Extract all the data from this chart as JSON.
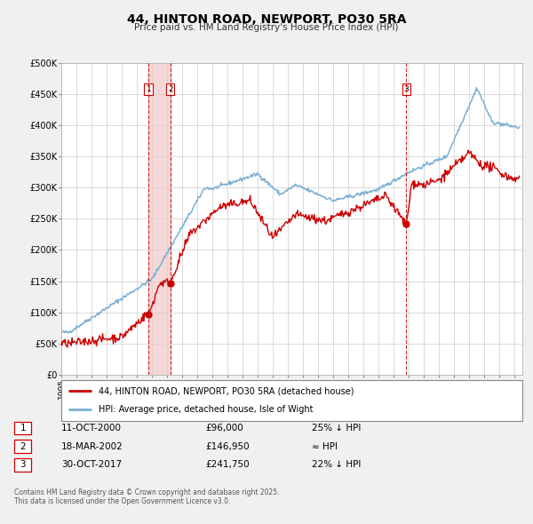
{
  "title": "44, HINTON ROAD, NEWPORT, PO30 5RA",
  "subtitle": "Price paid vs. HM Land Registry's House Price Index (HPI)",
  "ylim": [
    0,
    500000
  ],
  "xlim_start": 1995.0,
  "xlim_end": 2025.5,
  "yticks": [
    0,
    50000,
    100000,
    150000,
    200000,
    250000,
    300000,
    350000,
    400000,
    450000,
    500000
  ],
  "ytick_labels": [
    "£0",
    "£50K",
    "£100K",
    "£150K",
    "£200K",
    "£250K",
    "£300K",
    "£350K",
    "£400K",
    "£450K",
    "£500K"
  ],
  "xticks": [
    1995,
    1996,
    1997,
    1998,
    1999,
    2000,
    2001,
    2002,
    2003,
    2004,
    2005,
    2006,
    2007,
    2008,
    2009,
    2010,
    2011,
    2012,
    2013,
    2014,
    2015,
    2016,
    2017,
    2018,
    2019,
    2020,
    2021,
    2022,
    2023,
    2024,
    2025
  ],
  "sale_color": "#cc0000",
  "hpi_color": "#7ab0d4",
  "vline_color": "#cc0000",
  "vspan_color": "#f0c8c8",
  "marker_color": "#cc0000",
  "legend_entry1": "44, HINTON ROAD, NEWPORT, PO30 5RA (detached house)",
  "legend_entry2": "HPI: Average price, detached house, Isle of Wight",
  "transaction1_date": 2000.78,
  "transaction1_price": 96000,
  "transaction1_label": "1",
  "transaction1_text": "11-OCT-2000",
  "transaction1_amount": "£96,000",
  "transaction1_relation": "25% ↓ HPI",
  "transaction2_date": 2002.21,
  "transaction2_price": 146950,
  "transaction2_label": "2",
  "transaction2_text": "18-MAR-2002",
  "transaction2_amount": "£146,950",
  "transaction2_relation": "≈ HPI",
  "transaction3_date": 2017.83,
  "transaction3_price": 241750,
  "transaction3_label": "3",
  "transaction3_text": "30-OCT-2017",
  "transaction3_amount": "£241,750",
  "transaction3_relation": "22% ↓ HPI",
  "footer1": "Contains HM Land Registry data © Crown copyright and database right 2025.",
  "footer2": "This data is licensed under the Open Government Licence v3.0.",
  "background_color": "#f0f0f0",
  "plot_bg_color": "#ffffff",
  "grid_color": "#cccccc"
}
